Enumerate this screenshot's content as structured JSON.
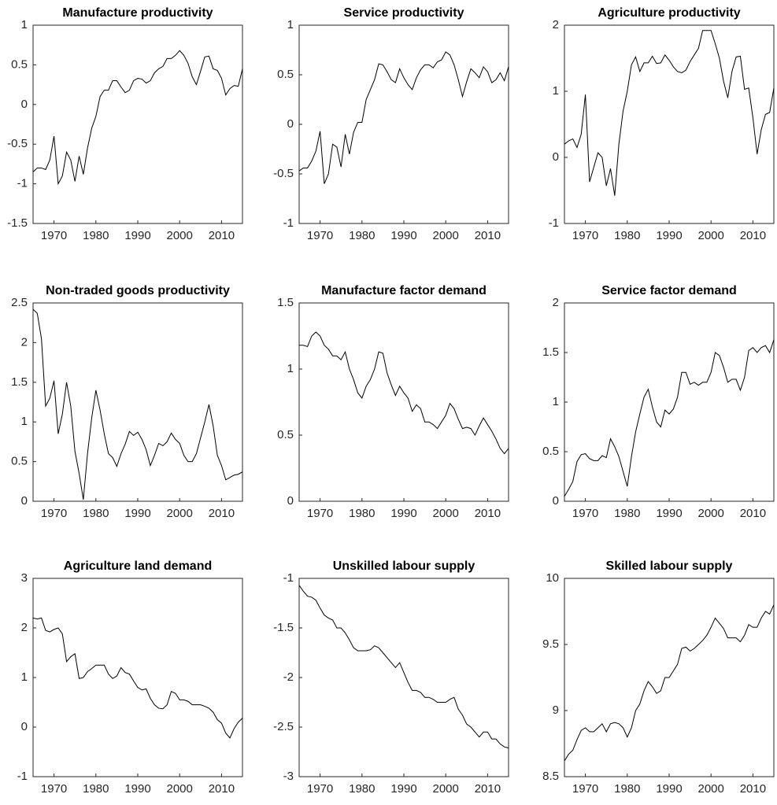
{
  "chart_data": [
    {
      "type": "line",
      "title": "Manufacture productivity",
      "x": [
        1965,
        1966,
        1967,
        1968,
        1969,
        1970,
        1971,
        1972,
        1973,
        1974,
        1975,
        1976,
        1977,
        1978,
        1979,
        1980,
        1981,
        1982,
        1983,
        1984,
        1985,
        1986,
        1987,
        1988,
        1989,
        1990,
        1991,
        1992,
        1993,
        1994,
        1995,
        1996,
        1997,
        1998,
        1999,
        2000,
        2001,
        2002,
        2003,
        2004,
        2005,
        2006,
        2007,
        2008,
        2009,
        2010,
        2011,
        2012,
        2013,
        2014,
        2015
      ],
      "series": [
        {
          "color": "#000000",
          "values": [
            -0.85,
            -0.8,
            -0.8,
            -0.82,
            -0.7,
            -0.4,
            -1.0,
            -0.9,
            -0.6,
            -0.7,
            -0.97,
            -0.65,
            -0.88,
            -0.55,
            -0.3,
            -0.15,
            0.1,
            0.18,
            0.18,
            0.3,
            0.3,
            0.22,
            0.15,
            0.18,
            0.3,
            0.33,
            0.32,
            0.27,
            0.3,
            0.4,
            0.45,
            0.48,
            0.58,
            0.58,
            0.62,
            0.68,
            0.62,
            0.52,
            0.35,
            0.25,
            0.42,
            0.6,
            0.61,
            0.45,
            0.43,
            0.33,
            0.12,
            0.2,
            0.24,
            0.23,
            0.45
          ]
        }
      ],
      "xlim": [
        1965,
        2015
      ],
      "xticks": [
        1970,
        1980,
        1990,
        2000,
        2010
      ],
      "ylim": [
        -1.5,
        1
      ],
      "yticks": [
        -1.5,
        -1,
        -0.5,
        0,
        0.5,
        1
      ]
    },
    {
      "type": "line",
      "title": "Service productivity",
      "x": [
        1965,
        1966,
        1967,
        1968,
        1969,
        1970,
        1971,
        1972,
        1973,
        1974,
        1975,
        1976,
        1977,
        1978,
        1979,
        1980,
        1981,
        1982,
        1983,
        1984,
        1985,
        1986,
        1987,
        1988,
        1989,
        1990,
        1991,
        1992,
        1993,
        1994,
        1995,
        1996,
        1997,
        1998,
        1999,
        2000,
        2001,
        2002,
        2003,
        2004,
        2005,
        2006,
        2007,
        2008,
        2009,
        2010,
        2011,
        2012,
        2013,
        2014,
        2015
      ],
      "series": [
        {
          "color": "#000000",
          "values": [
            -0.47,
            -0.44,
            -0.44,
            -0.37,
            -0.27,
            -0.07,
            -0.6,
            -0.5,
            -0.2,
            -0.23,
            -0.43,
            -0.1,
            -0.3,
            -0.08,
            0.02,
            0.02,
            0.25,
            0.35,
            0.45,
            0.61,
            0.6,
            0.53,
            0.45,
            0.42,
            0.56,
            0.47,
            0.4,
            0.35,
            0.47,
            0.55,
            0.6,
            0.6,
            0.57,
            0.63,
            0.65,
            0.73,
            0.7,
            0.6,
            0.45,
            0.28,
            0.43,
            0.56,
            0.52,
            0.47,
            0.58,
            0.53,
            0.42,
            0.45,
            0.52,
            0.44,
            0.58
          ]
        }
      ],
      "xlim": [
        1965,
        2015
      ],
      "xticks": [
        1970,
        1980,
        1990,
        2000,
        2010
      ],
      "ylim": [
        -1,
        1
      ],
      "yticks": [
        -1,
        -0.5,
        0,
        0.5,
        1
      ]
    },
    {
      "type": "line",
      "title": "Agriculture productivity",
      "x": [
        1965,
        1966,
        1967,
        1968,
        1969,
        1970,
        1971,
        1972,
        1973,
        1974,
        1975,
        1976,
        1977,
        1978,
        1979,
        1980,
        1981,
        1982,
        1983,
        1984,
        1985,
        1986,
        1987,
        1988,
        1989,
        1990,
        1991,
        1992,
        1993,
        1994,
        1995,
        1996,
        1997,
        1998,
        1999,
        2000,
        2001,
        2002,
        2003,
        2004,
        2005,
        2006,
        2007,
        2008,
        2009,
        2010,
        2011,
        2012,
        2013,
        2014,
        2015
      ],
      "series": [
        {
          "color": "#000000",
          "values": [
            0.2,
            0.25,
            0.28,
            0.15,
            0.35,
            0.95,
            -0.37,
            -0.15,
            0.07,
            0,
            -0.43,
            -0.17,
            -0.58,
            0.2,
            0.7,
            1.0,
            1.4,
            1.52,
            1.3,
            1.43,
            1.43,
            1.53,
            1.42,
            1.43,
            1.55,
            1.47,
            1.37,
            1.3,
            1.28,
            1.32,
            1.45,
            1.55,
            1.65,
            1.92,
            1.92,
            1.92,
            1.72,
            1.5,
            1.15,
            0.9,
            1.3,
            1.52,
            1.53,
            1.03,
            1.05,
            0.6,
            0.05,
            0.42,
            0.65,
            0.68,
            1.05
          ]
        }
      ],
      "xlim": [
        1965,
        2015
      ],
      "xticks": [
        1970,
        1980,
        1990,
        2000,
        2010
      ],
      "ylim": [
        -1,
        2
      ],
      "yticks": [
        -1,
        0,
        1,
        2
      ]
    },
    {
      "type": "line",
      "title": "Non-traded goods productivity",
      "x": [
        1965,
        1966,
        1967,
        1968,
        1969,
        1970,
        1971,
        1972,
        1973,
        1974,
        1975,
        1976,
        1977,
        1978,
        1979,
        1980,
        1981,
        1982,
        1983,
        1984,
        1985,
        1986,
        1987,
        1988,
        1989,
        1990,
        1991,
        1992,
        1993,
        1994,
        1995,
        1996,
        1997,
        1998,
        1999,
        2000,
        2001,
        2002,
        2003,
        2004,
        2005,
        2006,
        2007,
        2008,
        2009,
        2010,
        2011,
        2012,
        2013,
        2014,
        2015
      ],
      "series": [
        {
          "color": "#000000",
          "values": [
            2.42,
            2.37,
            2.05,
            1.2,
            1.3,
            1.52,
            0.85,
            1.1,
            1.5,
            1.2,
            0.63,
            0.35,
            0.02,
            0.6,
            1.05,
            1.4,
            1.15,
            0.85,
            0.6,
            0.55,
            0.44,
            0.6,
            0.72,
            0.88,
            0.83,
            0.87,
            0.78,
            0.65,
            0.45,
            0.58,
            0.73,
            0.7,
            0.75,
            0.86,
            0.78,
            0.73,
            0.58,
            0.5,
            0.5,
            0.6,
            0.8,
            1.0,
            1.22,
            0.95,
            0.58,
            0.45,
            0.27,
            0.3,
            0.33,
            0.34,
            0.37
          ]
        }
      ],
      "xlim": [
        1965,
        2015
      ],
      "xticks": [
        1970,
        1980,
        1990,
        2000,
        2010
      ],
      "ylim": [
        0,
        2.5
      ],
      "yticks": [
        0,
        0.5,
        1,
        1.5,
        2,
        2.5
      ]
    },
    {
      "type": "line",
      "title": "Manufacture factor demand",
      "x": [
        1965,
        1966,
        1967,
        1968,
        1969,
        1970,
        1971,
        1972,
        1973,
        1974,
        1975,
        1976,
        1977,
        1978,
        1979,
        1980,
        1981,
        1982,
        1983,
        1984,
        1985,
        1986,
        1987,
        1988,
        1989,
        1990,
        1991,
        1992,
        1993,
        1994,
        1995,
        1996,
        1997,
        1998,
        1999,
        2000,
        2001,
        2002,
        2003,
        2004,
        2005,
        2006,
        2007,
        2008,
        2009,
        2010,
        2011,
        2012,
        2013,
        2014,
        2015
      ],
      "series": [
        {
          "color": "#000000",
          "values": [
            1.18,
            1.18,
            1.17,
            1.25,
            1.28,
            1.25,
            1.18,
            1.15,
            1.1,
            1.1,
            1.07,
            1.13,
            1.0,
            0.92,
            0.82,
            0.78,
            0.87,
            0.92,
            1.0,
            1.13,
            1.12,
            0.97,
            0.88,
            0.8,
            0.87,
            0.82,
            0.78,
            0.68,
            0.73,
            0.7,
            0.6,
            0.6,
            0.58,
            0.55,
            0.6,
            0.65,
            0.74,
            0.7,
            0.62,
            0.55,
            0.56,
            0.55,
            0.5,
            0.57,
            0.63,
            0.58,
            0.53,
            0.47,
            0.4,
            0.36,
            0.4
          ]
        }
      ],
      "xlim": [
        1965,
        2015
      ],
      "xticks": [
        1970,
        1980,
        1990,
        2000,
        2010
      ],
      "ylim": [
        0,
        1.5
      ],
      "yticks": [
        0,
        0.5,
        1,
        1.5
      ]
    },
    {
      "type": "line",
      "title": "Service factor demand",
      "x": [
        1965,
        1966,
        1967,
        1968,
        1969,
        1970,
        1971,
        1972,
        1973,
        1974,
        1975,
        1976,
        1977,
        1978,
        1979,
        1980,
        1981,
        1982,
        1983,
        1984,
        1985,
        1986,
        1987,
        1988,
        1989,
        1990,
        1991,
        1992,
        1993,
        1994,
        1995,
        1996,
        1997,
        1998,
        1999,
        2000,
        2001,
        2002,
        2003,
        2004,
        2005,
        2006,
        2007,
        2008,
        2009,
        2010,
        2011,
        2012,
        2013,
        2014,
        2015
      ],
      "series": [
        {
          "color": "#000000",
          "values": [
            0.05,
            0.12,
            0.2,
            0.4,
            0.47,
            0.48,
            0.43,
            0.41,
            0.41,
            0.46,
            0.44,
            0.63,
            0.55,
            0.45,
            0.3,
            0.15,
            0.45,
            0.7,
            0.88,
            1.05,
            1.13,
            0.95,
            0.8,
            0.75,
            0.92,
            0.88,
            0.93,
            1.05,
            1.3,
            1.3,
            1.18,
            1.2,
            1.17,
            1.2,
            1.2,
            1.3,
            1.5,
            1.47,
            1.35,
            1.2,
            1.23,
            1.23,
            1.12,
            1.25,
            1.52,
            1.55,
            1.5,
            1.55,
            1.57,
            1.5,
            1.63
          ]
        }
      ],
      "xlim": [
        1965,
        2015
      ],
      "xticks": [
        1970,
        1980,
        1990,
        2000,
        2010
      ],
      "ylim": [
        0,
        2
      ],
      "yticks": [
        0,
        0.5,
        1,
        1.5,
        2
      ]
    },
    {
      "type": "line",
      "title": "Agriculture land demand",
      "x": [
        1965,
        1966,
        1967,
        1968,
        1969,
        1970,
        1971,
        1972,
        1973,
        1974,
        1975,
        1976,
        1977,
        1978,
        1979,
        1980,
        1981,
        1982,
        1983,
        1984,
        1985,
        1986,
        1987,
        1988,
        1989,
        1990,
        1991,
        1992,
        1993,
        1994,
        1995,
        1996,
        1997,
        1998,
        1999,
        2000,
        2001,
        2002,
        2003,
        2004,
        2005,
        2006,
        2007,
        2008,
        2009,
        2010,
        2011,
        2012,
        2013,
        2014,
        2015
      ],
      "series": [
        {
          "color": "#000000",
          "values": [
            2.2,
            2.18,
            2.2,
            1.95,
            1.92,
            1.97,
            2.0,
            1.88,
            1.32,
            1.42,
            1.48,
            0.98,
            1.0,
            1.12,
            1.18,
            1.25,
            1.25,
            1.25,
            1.07,
            0.98,
            1.03,
            1.2,
            1.1,
            1.07,
            0.93,
            0.8,
            0.75,
            0.77,
            0.58,
            0.45,
            0.38,
            0.37,
            0.45,
            0.72,
            0.68,
            0.55,
            0.55,
            0.52,
            0.45,
            0.45,
            0.45,
            0.42,
            0.38,
            0.3,
            0.15,
            0.08,
            -0.12,
            -0.22,
            -0.03,
            0.1,
            0.18
          ]
        }
      ],
      "xlim": [
        1965,
        2015
      ],
      "xticks": [
        1970,
        1980,
        1990,
        2000,
        2010
      ],
      "ylim": [
        -1,
        3
      ],
      "yticks": [
        -1,
        0,
        1,
        2,
        3
      ]
    },
    {
      "type": "line",
      "title": "Unskilled labour supply",
      "x": [
        1965,
        1966,
        1967,
        1968,
        1969,
        1970,
        1971,
        1972,
        1973,
        1974,
        1975,
        1976,
        1977,
        1978,
        1979,
        1980,
        1981,
        1982,
        1983,
        1984,
        1985,
        1986,
        1987,
        1988,
        1989,
        1990,
        1991,
        1992,
        1993,
        1994,
        1995,
        1996,
        1997,
        1998,
        1999,
        2000,
        2001,
        2002,
        2003,
        2004,
        2005,
        2006,
        2007,
        2008,
        2009,
        2010,
        2011,
        2012,
        2013,
        2014,
        2015
      ],
      "series": [
        {
          "color": "#000000",
          "values": [
            -1.07,
            -1.13,
            -1.18,
            -1.19,
            -1.22,
            -1.3,
            -1.37,
            -1.4,
            -1.42,
            -1.5,
            -1.5,
            -1.55,
            -1.62,
            -1.7,
            -1.73,
            -1.73,
            -1.73,
            -1.72,
            -1.68,
            -1.7,
            -1.75,
            -1.8,
            -1.85,
            -1.9,
            -1.85,
            -1.95,
            -2.05,
            -2.13,
            -2.13,
            -2.15,
            -2.2,
            -2.2,
            -2.22,
            -2.25,
            -2.25,
            -2.25,
            -2.22,
            -2.2,
            -2.32,
            -2.38,
            -2.47,
            -2.5,
            -2.55,
            -2.6,
            -2.55,
            -2.55,
            -2.62,
            -2.62,
            -2.67,
            -2.7,
            -2.71
          ]
        }
      ],
      "xlim": [
        1965,
        2015
      ],
      "xticks": [
        1970,
        1980,
        1990,
        2000,
        2010
      ],
      "ylim": [
        -3,
        -1
      ],
      "yticks": [
        -3,
        -2.5,
        -2,
        -1.5,
        -1
      ]
    },
    {
      "type": "line",
      "title": "Skilled labour supply",
      "x": [
        1965,
        1966,
        1967,
        1968,
        1969,
        1970,
        1971,
        1972,
        1973,
        1974,
        1975,
        1976,
        1977,
        1978,
        1979,
        1980,
        1981,
        1982,
        1983,
        1984,
        1985,
        1986,
        1987,
        1988,
        1989,
        1990,
        1991,
        1992,
        1993,
        1994,
        1995,
        1996,
        1997,
        1998,
        1999,
        2000,
        2001,
        2002,
        2003,
        2004,
        2005,
        2006,
        2007,
        2008,
        2009,
        2010,
        2011,
        2012,
        2013,
        2014,
        2015
      ],
      "series": [
        {
          "color": "#000000",
          "values": [
            8.62,
            8.67,
            8.7,
            8.78,
            8.85,
            8.87,
            8.84,
            8.84,
            8.87,
            8.9,
            8.84,
            8.9,
            8.91,
            8.9,
            8.87,
            8.8,
            8.87,
            9.0,
            9.05,
            9.15,
            9.22,
            9.18,
            9.13,
            9.15,
            9.25,
            9.25,
            9.3,
            9.35,
            9.47,
            9.48,
            9.45,
            9.47,
            9.5,
            9.53,
            9.57,
            9.63,
            9.7,
            9.66,
            9.62,
            9.55,
            9.55,
            9.55,
            9.52,
            9.57,
            9.65,
            9.63,
            9.63,
            9.7,
            9.75,
            9.73,
            9.8
          ]
        }
      ],
      "xlim": [
        1965,
        2015
      ],
      "xticks": [
        1970,
        1980,
        1990,
        2000,
        2010
      ],
      "ylim": [
        8.5,
        10
      ],
      "yticks": [
        8.5,
        9,
        9.5,
        10
      ]
    }
  ]
}
